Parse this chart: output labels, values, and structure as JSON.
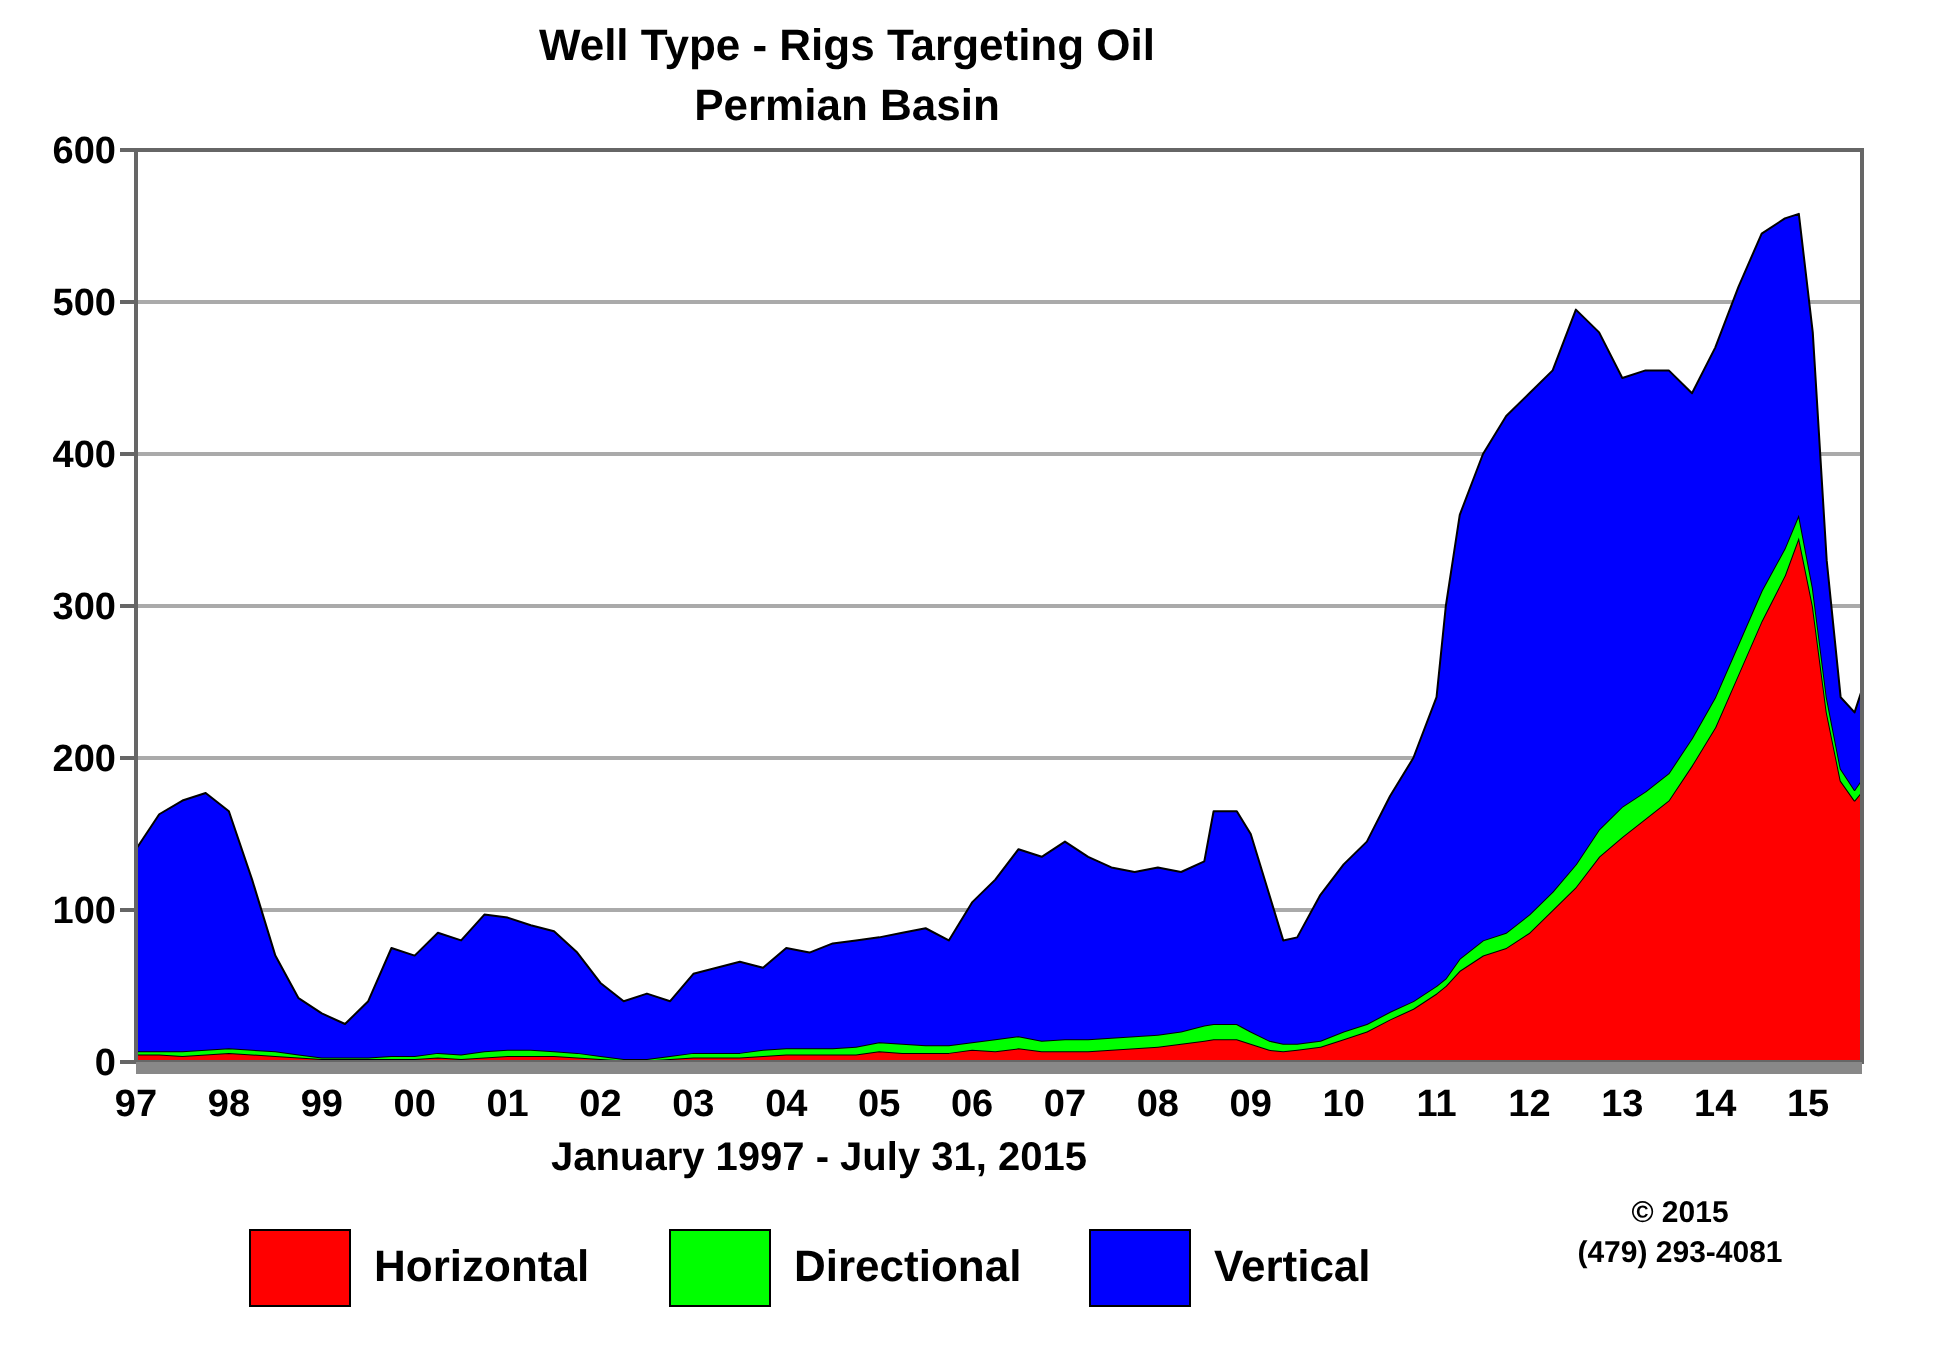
{
  "chart_data": {
    "type": "area",
    "stacked": true,
    "title": "Well Type - Rigs Targeting Oil",
    "subtitle": "Permian Basin",
    "xlabel": "January 1997 - July 31, 2015",
    "annotations": [
      "© 2015",
      "(479) 293-4081"
    ],
    "x": [
      1997.0,
      1997.25,
      1997.5,
      1997.75,
      1998.0,
      1998.25,
      1998.5,
      1998.75,
      1999.0,
      1999.25,
      1999.5,
      1999.75,
      2000.0,
      2000.25,
      2000.5,
      2000.75,
      2001.0,
      2001.25,
      2001.5,
      2001.75,
      2002.0,
      2002.25,
      2002.5,
      2002.75,
      2003.0,
      2003.25,
      2003.5,
      2003.75,
      2004.0,
      2004.25,
      2004.5,
      2004.75,
      2005.0,
      2005.25,
      2005.5,
      2005.75,
      2006.0,
      2006.25,
      2006.5,
      2006.75,
      2007.0,
      2007.25,
      2007.5,
      2007.75,
      2008.0,
      2008.25,
      2008.5,
      2008.6,
      2008.85,
      2009.0,
      2009.2,
      2009.35,
      2009.5,
      2009.75,
      2010.0,
      2010.25,
      2010.5,
      2010.75,
      2011.0,
      2011.1,
      2011.25,
      2011.5,
      2011.75,
      2012.0,
      2012.25,
      2012.5,
      2012.75,
      2013.0,
      2013.25,
      2013.5,
      2013.75,
      2014.0,
      2014.25,
      2014.5,
      2014.75,
      2014.9,
      2015.05,
      2015.2,
      2015.35,
      2015.5,
      2015.58
    ],
    "series": [
      {
        "name": "Horizontal",
        "color": "#ff0000",
        "values": [
          5,
          5,
          4,
          5,
          6,
          5,
          4,
          3,
          2,
          2,
          2,
          2,
          2,
          3,
          2,
          3,
          4,
          4,
          4,
          3,
          2,
          1,
          1,
          2,
          3,
          3,
          3,
          4,
          5,
          5,
          5,
          5,
          7,
          6,
          6,
          6,
          8,
          7,
          9,
          7,
          7,
          7,
          8,
          9,
          10,
          12,
          14,
          15,
          15,
          12,
          8,
          7,
          8,
          10,
          15,
          20,
          28,
          35,
          45,
          50,
          60,
          70,
          75,
          85,
          100,
          115,
          135,
          148,
          160,
          172,
          195,
          220,
          255,
          290,
          320,
          345,
          300,
          230,
          185,
          172,
          178
        ]
      },
      {
        "name": "Directional",
        "color": "#00ff00",
        "values": [
          2,
          2,
          3,
          3,
          3,
          3,
          3,
          2,
          1,
          1,
          1,
          2,
          2,
          3,
          3,
          4,
          4,
          4,
          3,
          3,
          2,
          1,
          1,
          2,
          3,
          3,
          3,
          4,
          4,
          4,
          4,
          5,
          6,
          6,
          5,
          5,
          5,
          8,
          8,
          7,
          8,
          8,
          8,
          8,
          8,
          8,
          10,
          10,
          10,
          8,
          6,
          5,
          4,
          4,
          5,
          5,
          5,
          5,
          5,
          5,
          8,
          10,
          10,
          12,
          12,
          15,
          18,
          20,
          18,
          18,
          18,
          20,
          20,
          20,
          18,
          15,
          12,
          10,
          8,
          7,
          8
        ]
      },
      {
        "name": "Vertical",
        "color": "#0000ff",
        "values": [
          133,
          156,
          165,
          169,
          156,
          112,
          63,
          37,
          29,
          22,
          37,
          71,
          66,
          79,
          75,
          90,
          87,
          82,
          79,
          66,
          48,
          38,
          43,
          36,
          52,
          56,
          60,
          54,
          66,
          63,
          69,
          70,
          69,
          73,
          77,
          69,
          92,
          105,
          123,
          121,
          130,
          120,
          112,
          108,
          110,
          105,
          108,
          140,
          140,
          130,
          96,
          68,
          70,
          96,
          110,
          120,
          142,
          160,
          190,
          245,
          292,
          320,
          340,
          343,
          343,
          365,
          327,
          282,
          277,
          265,
          227,
          230,
          235,
          235,
          217,
          198,
          168,
          90,
          47,
          51,
          59
        ]
      }
    ],
    "xlim": [
      1997,
      2015.58
    ],
    "xticks": [
      {
        "value": 1997,
        "label": "97"
      },
      {
        "value": 1998,
        "label": "98"
      },
      {
        "value": 1999,
        "label": "99"
      },
      {
        "value": 2000,
        "label": "00"
      },
      {
        "value": 2001,
        "label": "01"
      },
      {
        "value": 2002,
        "label": "02"
      },
      {
        "value": 2003,
        "label": "03"
      },
      {
        "value": 2004,
        "label": "04"
      },
      {
        "value": 2005,
        "label": "05"
      },
      {
        "value": 2006,
        "label": "06"
      },
      {
        "value": 2007,
        "label": "07"
      },
      {
        "value": 2008,
        "label": "08"
      },
      {
        "value": 2009,
        "label": "09"
      },
      {
        "value": 2010,
        "label": "10"
      },
      {
        "value": 2011,
        "label": "11"
      },
      {
        "value": 2012,
        "label": "12"
      },
      {
        "value": 2013,
        "label": "13"
      },
      {
        "value": 2014,
        "label": "14"
      },
      {
        "value": 2015,
        "label": "15"
      }
    ],
    "ylim": [
      0,
      600
    ],
    "yticks": [
      0,
      100,
      200,
      300,
      400,
      500,
      600
    ],
    "grid": "y",
    "legend": "bottom"
  }
}
